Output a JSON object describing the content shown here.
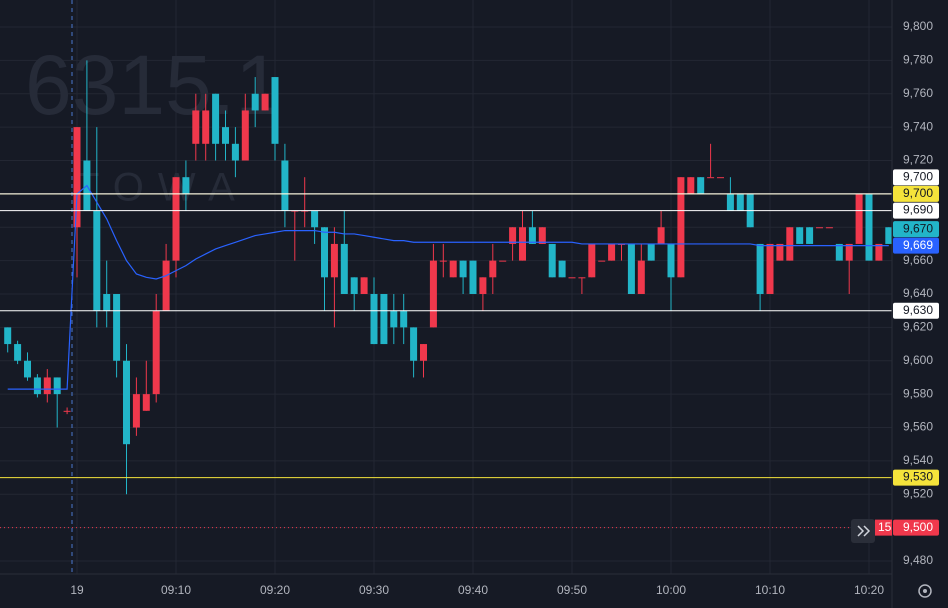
{
  "chart_data": {
    "type": "candlestick",
    "watermark": "6315.1",
    "watermark_subtitle": "TOWA",
    "up_color": "#f0384c",
    "down_color": "#22b5c8",
    "grid": true,
    "categories": [
      null,
      null,
      null,
      null,
      null,
      null,
      null,
      "19",
      null,
      null,
      null,
      null,
      null,
      null,
      null,
      null,
      null,
      "09:10",
      null,
      null,
      null,
      null,
      null,
      null,
      null,
      null,
      null,
      "09:20",
      null,
      null,
      null,
      null,
      null,
      null,
      null,
      null,
      null,
      "09:30",
      null,
      null,
      null,
      null,
      null,
      null,
      null,
      null,
      null,
      "09:40",
      null,
      null,
      null,
      null,
      null,
      null,
      null,
      null,
      null,
      "09:50",
      null,
      null,
      null,
      null,
      null,
      null,
      null,
      null,
      null,
      "10:00",
      null,
      null,
      null,
      null,
      null,
      null,
      null,
      null,
      null,
      "10:10",
      null,
      null,
      null,
      null,
      null,
      null,
      null,
      null,
      null,
      "10:20",
      null,
      null
    ],
    "open": [
      9620,
      9610,
      9600,
      9590,
      9580,
      9590,
      9570,
      9680,
      9720,
      9690,
      9640,
      9640,
      9600,
      9560,
      9570,
      9580,
      9630,
      9660,
      9710,
      9730,
      9730,
      9760,
      9740,
      9730,
      9720,
      9760,
      9750,
      9770,
      9720,
      9690,
      9690,
      9690,
      9680,
      9650,
      9670,
      9650,
      9640,
      9640,
      9640,
      9630,
      9630,
      9620,
      9600,
      9620,
      9660,
      9650,
      9660,
      9660,
      9640,
      9650,
      9660,
      9670,
      9660,
      9680,
      9670,
      9670,
      9660,
      9650,
      9650,
      9650,
      9660,
      9660,
      9670,
      9670,
      9640,
      9670,
      9670,
      9670,
      9650,
      9700,
      9710,
      9710,
      9710,
      9700,
      9700,
      9700,
      9670,
      9640,
      9660,
      9660,
      9680,
      9680,
      9680,
      9680,
      9670,
      9660,
      9670,
      9700,
      9660,
      9680
    ],
    "high": [
      9620,
      9612,
      9605,
      9592,
      9595,
      9590,
      9572,
      9740,
      9780,
      9740,
      9660,
      9640,
      9610,
      9590,
      9600,
      9640,
      9670,
      9710,
      9720,
      9760,
      9760,
      9760,
      9750,
      9740,
      9760,
      9770,
      9760,
      9770,
      9730,
      9690,
      9710,
      9690,
      9680,
      9680,
      9690,
      9650,
      9650,
      9650,
      9640,
      9640,
      9640,
      9620,
      9610,
      9670,
      9670,
      9660,
      9660,
      9660,
      9650,
      9670,
      9660,
      9680,
      9690,
      9690,
      9680,
      9670,
      9660,
      9650,
      9650,
      9670,
      9660,
      9670,
      9670,
      9670,
      9670,
      9670,
      9690,
      9670,
      9710,
      9710,
      9710,
      9730,
      9710,
      9710,
      9700,
      9700,
      9670,
      9670,
      9670,
      9680,
      9680,
      9680,
      9680,
      9680,
      9670,
      9670,
      9700,
      9700,
      9670,
      9680
    ],
    "low": [
      9605,
      9598,
      9588,
      9578,
      9575,
      9560,
      9568,
      9650,
      9690,
      9620,
      9620,
      9590,
      9520,
      9555,
      9570,
      9575,
      9630,
      9650,
      9690,
      9720,
      9720,
      9720,
      9720,
      9710,
      9720,
      9740,
      9750,
      9720,
      9680,
      9660,
      9680,
      9670,
      9630,
      9620,
      9640,
      9630,
      9640,
      9610,
      9610,
      9610,
      9610,
      9590,
      9590,
      9620,
      9650,
      9650,
      9640,
      9640,
      9630,
      9640,
      9660,
      9660,
      9660,
      9670,
      9670,
      9650,
      9650,
      9650,
      9640,
      9650,
      9660,
      9660,
      9660,
      9640,
      9640,
      9660,
      9670,
      9630,
      9650,
      9700,
      9700,
      9710,
      9710,
      9690,
      9690,
      9680,
      9630,
      9640,
      9660,
      9660,
      9670,
      9670,
      9680,
      9680,
      9660,
      9640,
      9670,
      9660,
      9660,
      9670
    ],
    "close": [
      9610,
      9600,
      9590,
      9580,
      9590,
      9580,
      9570,
      9740,
      9690,
      9630,
      9630,
      9600,
      9550,
      9580,
      9580,
      9630,
      9660,
      9710,
      9700,
      9750,
      9750,
      9730,
      9730,
      9720,
      9750,
      9750,
      9760,
      9730,
      9690,
      9690,
      9690,
      9680,
      9650,
      9670,
      9640,
      9640,
      9650,
      9610,
      9610,
      9620,
      9620,
      9600,
      9610,
      9660,
      9660,
      9660,
      9650,
      9640,
      9650,
      9660,
      9660,
      9680,
      9680,
      9670,
      9680,
      9650,
      9650,
      9650,
      9650,
      9670,
      9660,
      9670,
      9670,
      9640,
      9660,
      9660,
      9680,
      9650,
      9710,
      9710,
      9700,
      9710,
      9710,
      9690,
      9690,
      9680,
      9640,
      9670,
      9670,
      9680,
      9670,
      9670,
      9680,
      9680,
      9660,
      9670,
      9700,
      9660,
      9670,
      9670
    ],
    "line": {
      "color": "#2962ff",
      "values": [
        9583,
        9583,
        9583,
        9583,
        9583,
        9583,
        9583,
        9700,
        9705,
        9695,
        9685,
        9672,
        9660,
        9652,
        9650,
        9649,
        9651,
        9654,
        9657,
        9661,
        9664,
        9667,
        9669,
        9671,
        9673,
        9675,
        9676,
        9677,
        9678,
        9678,
        9678,
        9678,
        9677,
        9677,
        9676,
        9676,
        9675,
        9674,
        9673,
        9672,
        9672,
        9671,
        9671,
        9671,
        9671,
        9671,
        9671,
        9671,
        9671,
        9671,
        9671,
        9671,
        9671,
        9671,
        9671,
        9671,
        9671,
        9671,
        9670,
        9670,
        9670,
        9670,
        9670,
        9670,
        9670,
        9670,
        9670,
        9670,
        9670,
        9670,
        9670,
        9670,
        9670,
        9670,
        9670,
        9670,
        9669,
        9669,
        9669,
        9669,
        9669,
        9669,
        9669,
        9669,
        9669,
        9669,
        9669,
        9669,
        9669,
        9669
      ]
    },
    "ylim": [
      9480,
      9800
    ],
    "yticks": [
      {
        "value": 9480,
        "label": "9,480"
      },
      {
        "value": 9500,
        "label": "9,500"
      },
      {
        "value": 9520,
        "label": "9,520"
      },
      {
        "value": 9540,
        "label": "9,540"
      },
      {
        "value": 9560,
        "label": "9,560"
      },
      {
        "value": 9580,
        "label": "9,580"
      },
      {
        "value": 9600,
        "label": "9,600"
      },
      {
        "value": 9620,
        "label": "9,620"
      },
      {
        "value": 9640,
        "label": "9,640"
      },
      {
        "value": 9660,
        "label": "9,660"
      },
      {
        "value": 9680,
        "label": "9,680"
      },
      {
        "value": 9700,
        "label": "9,700"
      },
      {
        "value": 9720,
        "label": "9,720"
      },
      {
        "value": 9740,
        "label": "9,740"
      },
      {
        "value": 9760,
        "label": "9,760"
      },
      {
        "value": 9780,
        "label": "9,780"
      },
      {
        "value": 9800,
        "label": "9,800"
      }
    ],
    "price_labels": [
      {
        "value": 9700,
        "label": "9,700",
        "color": "#f5e33b",
        "line": true
      },
      {
        "value": 9700,
        "label": "9,700",
        "color": "#ffffff",
        "line": true
      },
      {
        "value": 9690,
        "label": "9,690",
        "color": "#ffffff",
        "line": true
      },
      {
        "value": 9670,
        "label": "9,670",
        "color": "#22b5c8",
        "line": false
      },
      {
        "value": 9669,
        "label": "9,669",
        "color": "#2962ff",
        "line": false
      },
      {
        "value": 9630,
        "label": "9,630",
        "color": "#ffffff",
        "line": true
      },
      {
        "value": 9530,
        "label": "9,530",
        "color": "#f5e33b",
        "line": true
      },
      {
        "value": 9500,
        "label": "9,500",
        "color": "#f0384c",
        "line": false,
        "dotted": true,
        "countdown": "15"
      }
    ]
  }
}
